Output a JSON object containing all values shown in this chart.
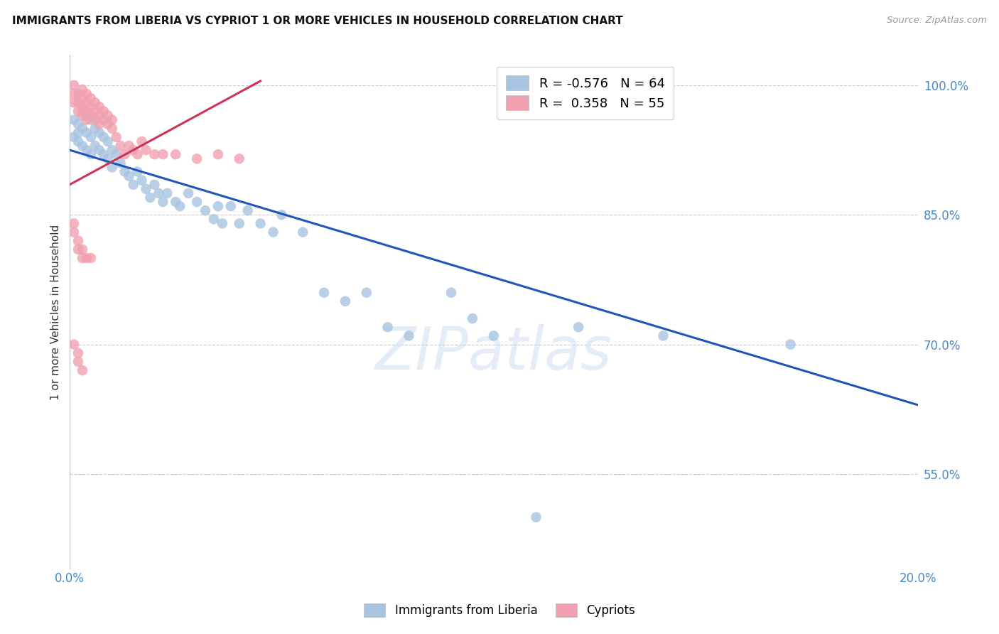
{
  "title": "IMMIGRANTS FROM LIBERIA VS CYPRIOT 1 OR MORE VEHICLES IN HOUSEHOLD CORRELATION CHART",
  "source": "Source: ZipAtlas.com",
  "ylabel": "1 or more Vehicles in Household",
  "xlim": [
    0.0,
    0.2
  ],
  "ylim": [
    0.44,
    1.035
  ],
  "yticks": [
    0.55,
    0.7,
    0.85,
    1.0
  ],
  "ytick_labels": [
    "55.0%",
    "70.0%",
    "85.0%",
    "100.0%"
  ],
  "xticks": [
    0.0,
    0.04,
    0.08,
    0.12,
    0.16,
    0.2
  ],
  "xtick_labels": [
    "0.0%",
    "",
    "",
    "",
    "",
    "20.0%"
  ],
  "legend_r1": "R = -0.576",
  "legend_n1": "N = 64",
  "legend_r2": "R =  0.358",
  "legend_n2": "N = 55",
  "blue_color": "#a8c4e0",
  "pink_color": "#f0a0b0",
  "blue_line_color": "#2255bb",
  "pink_line_color": "#cc3355",
  "blue_x": [
    0.001,
    0.001,
    0.002,
    0.002,
    0.002,
    0.003,
    0.003,
    0.003,
    0.004,
    0.004,
    0.004,
    0.005,
    0.005,
    0.005,
    0.006,
    0.006,
    0.007,
    0.007,
    0.008,
    0.008,
    0.009,
    0.009,
    0.01,
    0.01,
    0.011,
    0.012,
    0.013,
    0.014,
    0.015,
    0.016,
    0.017,
    0.018,
    0.019,
    0.02,
    0.021,
    0.022,
    0.023,
    0.025,
    0.026,
    0.028,
    0.03,
    0.032,
    0.034,
    0.035,
    0.036,
    0.038,
    0.04,
    0.042,
    0.045,
    0.048,
    0.05,
    0.055,
    0.06,
    0.065,
    0.07,
    0.075,
    0.08,
    0.09,
    0.095,
    0.1,
    0.12,
    0.14,
    0.17,
    0.11
  ],
  "blue_y": [
    0.96,
    0.94,
    0.955,
    0.935,
    0.945,
    0.97,
    0.95,
    0.93,
    0.965,
    0.945,
    0.925,
    0.96,
    0.94,
    0.92,
    0.95,
    0.93,
    0.945,
    0.925,
    0.94,
    0.92,
    0.935,
    0.915,
    0.925,
    0.905,
    0.92,
    0.91,
    0.9,
    0.895,
    0.885,
    0.9,
    0.89,
    0.88,
    0.87,
    0.885,
    0.875,
    0.865,
    0.875,
    0.865,
    0.86,
    0.875,
    0.865,
    0.855,
    0.845,
    0.86,
    0.84,
    0.86,
    0.84,
    0.855,
    0.84,
    0.83,
    0.85,
    0.83,
    0.76,
    0.75,
    0.76,
    0.72,
    0.71,
    0.76,
    0.73,
    0.71,
    0.72,
    0.71,
    0.7,
    0.5
  ],
  "pink_x": [
    0.001,
    0.001,
    0.001,
    0.002,
    0.002,
    0.002,
    0.003,
    0.003,
    0.003,
    0.003,
    0.004,
    0.004,
    0.004,
    0.004,
    0.005,
    0.005,
    0.005,
    0.006,
    0.006,
    0.006,
    0.007,
    0.007,
    0.007,
    0.008,
    0.008,
    0.009,
    0.009,
    0.01,
    0.01,
    0.011,
    0.012,
    0.013,
    0.014,
    0.015,
    0.016,
    0.017,
    0.018,
    0.02,
    0.022,
    0.025,
    0.03,
    0.035,
    0.04,
    0.001,
    0.001,
    0.002,
    0.002,
    0.003,
    0.003,
    0.004,
    0.005,
    0.001,
    0.002,
    0.002,
    0.003
  ],
  "pink_y": [
    1.0,
    0.99,
    0.98,
    0.99,
    0.98,
    0.97,
    0.995,
    0.985,
    0.975,
    0.965,
    0.99,
    0.98,
    0.97,
    0.96,
    0.985,
    0.975,
    0.965,
    0.98,
    0.97,
    0.96,
    0.975,
    0.965,
    0.955,
    0.97,
    0.96,
    0.965,
    0.955,
    0.96,
    0.95,
    0.94,
    0.93,
    0.92,
    0.93,
    0.925,
    0.92,
    0.935,
    0.925,
    0.92,
    0.92,
    0.92,
    0.915,
    0.92,
    0.915,
    0.84,
    0.83,
    0.82,
    0.81,
    0.81,
    0.8,
    0.8,
    0.8,
    0.7,
    0.69,
    0.68,
    0.67
  ],
  "blue_trend_x": [
    0.0,
    0.2
  ],
  "blue_trend_y": [
    0.925,
    0.63
  ],
  "pink_trend_x": [
    0.0,
    0.045
  ],
  "pink_trend_y": [
    0.885,
    1.005
  ],
  "background_color": "#ffffff",
  "grid_color": "#cccccc",
  "title_fontsize": 11,
  "axis_label_color": "#4488cc",
  "marker_size": 110
}
